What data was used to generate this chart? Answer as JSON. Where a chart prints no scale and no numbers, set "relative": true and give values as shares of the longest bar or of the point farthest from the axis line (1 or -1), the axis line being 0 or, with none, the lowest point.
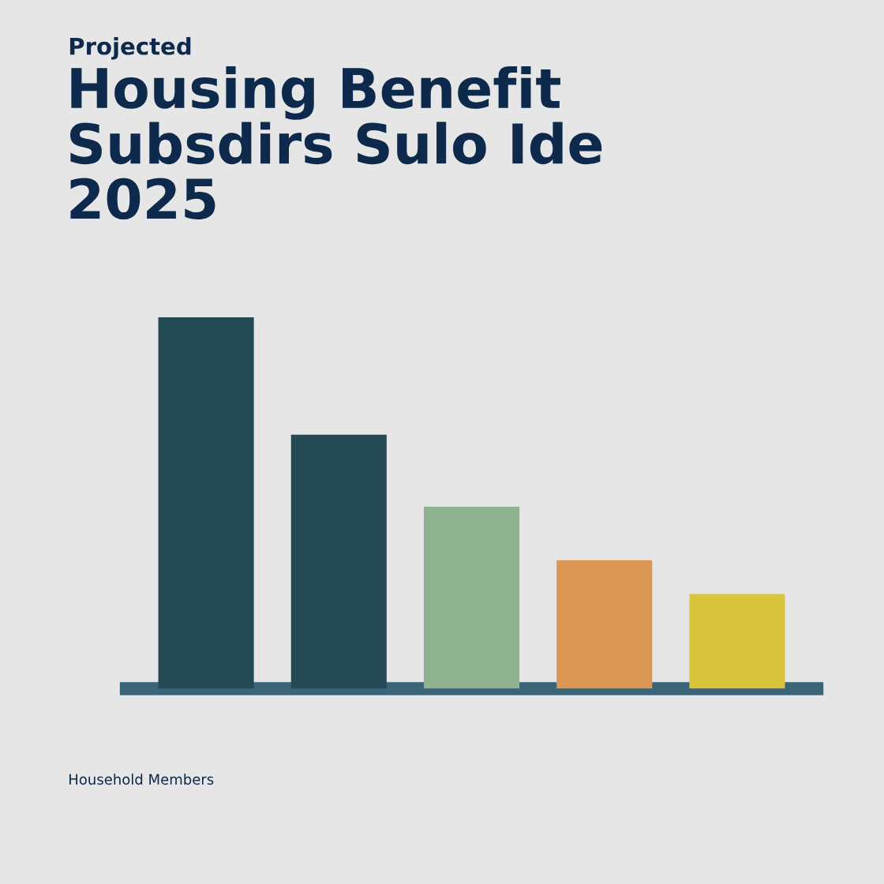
{
  "chart_data": {
    "type": "bar",
    "subtitle": "Projected",
    "title": "Housing Benefit\nSubsdirs Sulo Ide\n2025",
    "annotations": [
      "Household Members"
    ],
    "categories": [
      null,
      null,
      null,
      null,
      null
    ],
    "values": [
      1,
      0.684,
      0.49,
      0.346,
      0.255
    ],
    "colors": [
      "#244a56",
      "#244a56",
      "#8fb38e",
      "#dd9754",
      "#d9c43c"
    ],
    "relative": true,
    "grid": false,
    "legend": false
  }
}
